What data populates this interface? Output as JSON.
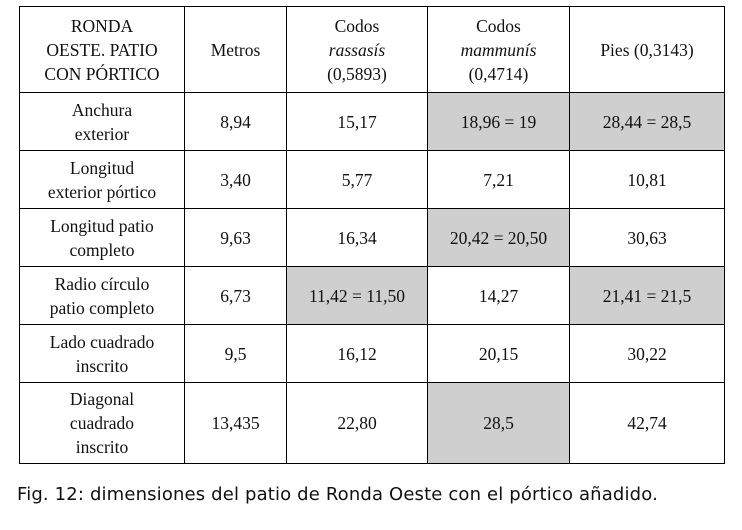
{
  "table": {
    "header": {
      "c0": [
        "RONDA",
        "OESTE. PATIO",
        "CON PÓRTICO"
      ],
      "c1": "Metros",
      "c2": {
        "title": "Codos",
        "sub": "rassasís",
        "val": "(0,5893)"
      },
      "c3": {
        "title": "Codos",
        "sub": "mammunís",
        "val": "(0,4714)"
      },
      "c4": "Pies (0,3143)"
    },
    "rows": [
      {
        "label": [
          "Anchura",
          "exterior"
        ],
        "cells": [
          "8,94",
          "15,17",
          "18,96 = 19",
          "28,44 = 28,5"
        ]
      },
      {
        "label": [
          "Longitud",
          "exterior pórtico"
        ],
        "cells": [
          "3,40",
          "5,77",
          "7,21",
          "10,81"
        ]
      },
      {
        "label": [
          "Longitud patio",
          "completo"
        ],
        "cells": [
          "9,63",
          "16,34",
          "20,42 = 20,50",
          "30,63"
        ]
      },
      {
        "label": [
          "Radio círculo",
          "patio completo"
        ],
        "cells": [
          "6,73",
          "11,42 = 11,50",
          "14,27",
          "21,41 = 21,5"
        ]
      },
      {
        "label": [
          "Lado cuadrado",
          "inscrito"
        ],
        "cells": [
          "9,5",
          "16,12",
          "20,15",
          "30,22"
        ]
      },
      {
        "label": [
          "Diagonal",
          "cuadrado",
          "inscrito"
        ],
        "cells": [
          "13,435",
          "22,80",
          "28,5",
          "42,74"
        ]
      }
    ],
    "shade_color": "#cfcfcf"
  },
  "caption": "Fig. 12: dimensiones del patio de Ronda Oeste con el pórtico añadido."
}
